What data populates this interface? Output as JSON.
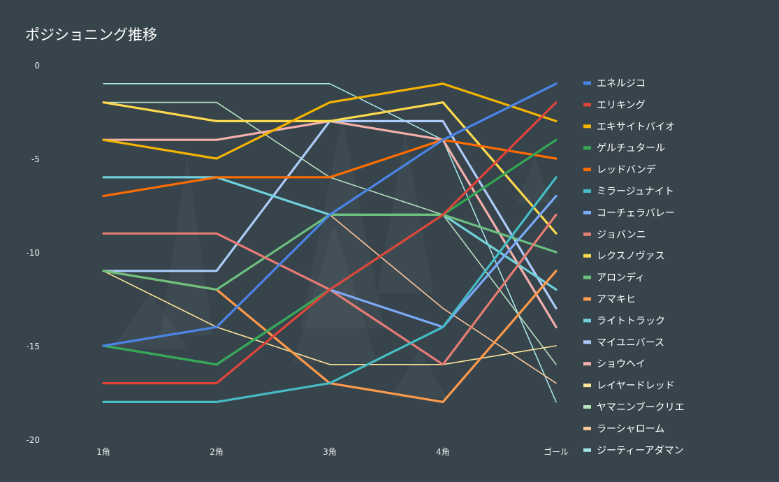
{
  "chart_data": {
    "type": "line",
    "title": "ポジショニング推移",
    "categories": [
      "1角",
      "2角",
      "3角",
      "4角",
      "ゴール"
    ],
    "ylim": [
      -20,
      0
    ],
    "yticks": [
      0,
      -5,
      -10,
      -15,
      -20
    ],
    "xlabel": "",
    "ylabel": "",
    "legend_position": "right",
    "series": [
      {
        "name": "エネルジコ",
        "color": "#4a86e8",
        "values": [
          -15,
          -14,
          -8,
          -4,
          -1
        ]
      },
      {
        "name": "エリキング",
        "color": "#e0453a",
        "values": [
          -17,
          -17,
          -12,
          -8,
          -2
        ]
      },
      {
        "name": "エキサイトバイオ",
        "color": "#f4b400",
        "values": [
          -4,
          -5,
          -2,
          -1,
          -3
        ]
      },
      {
        "name": "ゲルチュタール",
        "color": "#34a853",
        "values": [
          -15,
          -16,
          -12,
          -8,
          -4
        ]
      },
      {
        "name": "レッドバンデ",
        "color": "#ff6d00",
        "values": [
          -7,
          -6,
          -6,
          -4,
          -5
        ]
      },
      {
        "name": "ミラージュナイト",
        "color": "#46bdc6",
        "values": [
          -18,
          -18,
          -17,
          -14,
          -6
        ]
      },
      {
        "name": "コーチェラバレー",
        "color": "#7baaf7",
        "values": [
          -15,
          -16,
          -12,
          -14,
          -7
        ]
      },
      {
        "name": "ジョバンニ",
        "color": "#e67c73",
        "values": [
          -9,
          -9,
          -12,
          -16,
          -8
        ]
      },
      {
        "name": "レクスノヴァス",
        "color": "#fdd94e",
        "values": [
          -2,
          -3,
          -3,
          -2,
          -9
        ]
      },
      {
        "name": "アロンディ",
        "color": "#6dbf7e",
        "values": [
          -11,
          -12,
          -8,
          -8,
          -10
        ]
      },
      {
        "name": "アマキヒ",
        "color": "#ff9a4a",
        "values": [
          -11,
          -12,
          -17,
          -18,
          -11
        ]
      },
      {
        "name": "ライトトラック",
        "color": "#72d1d9",
        "values": [
          -6,
          -6,
          -8,
          -8,
          -12
        ]
      },
      {
        "name": "マイユニバース",
        "color": "#aecbfa",
        "values": [
          -11,
          -11,
          -3,
          -3,
          -13
        ]
      },
      {
        "name": "ショウヘイ",
        "color": "#f4b0aa",
        "values": [
          -4,
          -4,
          -3,
          -4,
          -14
        ]
      },
      {
        "name": "レイヤードレッド",
        "color": "#ffe599",
        "values": [
          -11,
          -14,
          -16,
          -16,
          -15
        ]
      },
      {
        "name": "ヤマニンブークリエ",
        "color": "#b7e1bf",
        "values": [
          -2,
          -2,
          -6,
          -8,
          -16
        ]
      },
      {
        "name": "ラーシャローム",
        "color": "#ffc699",
        "values": [
          -7,
          -6,
          -8,
          -13,
          -17
        ]
      },
      {
        "name": "ジーティーアダマン",
        "color": "#a6e3e7",
        "values": [
          -1,
          -1,
          -1,
          -4,
          -18
        ]
      }
    ]
  }
}
